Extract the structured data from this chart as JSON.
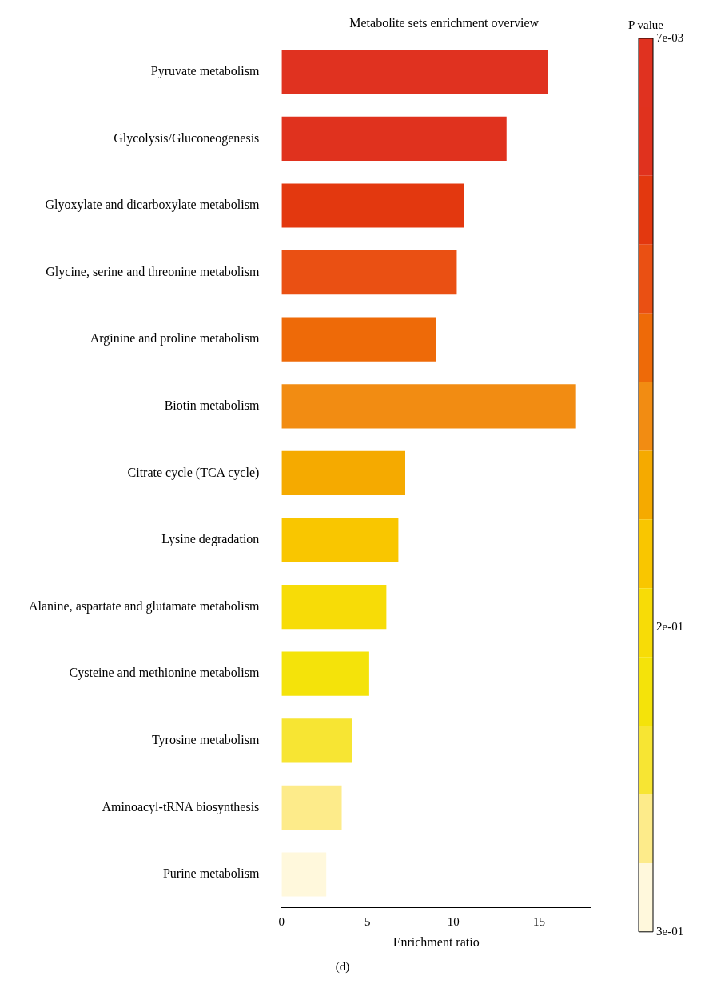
{
  "chart_data": {
    "type": "bar",
    "orientation": "horizontal",
    "title": "Metabolite sets enrichment overview",
    "xlabel": "Enrichment ratio",
    "clabel": "P value",
    "categories": [
      "Pyruvate metabolism",
      "Glycolysis/Gluconeogenesis",
      "Glyoxylate and dicarboxylate metabolism",
      "Glycine, serine and threonine metabolism",
      "Arginine and proline metabolism",
      "Biotin metabolism",
      "Citrate cycle (TCA cycle)",
      "Lysine degradation",
      "Alanine, aspartate and glutamate metabolism",
      "Cysteine and methionine metabolism",
      "Tyrosine metabolism",
      "Aminoacyl-tRNA biosynthesis",
      "Purine metabolism"
    ],
    "values": [
      15.5,
      13.1,
      10.6,
      10.2,
      9.0,
      17.1,
      7.2,
      6.8,
      6.1,
      5.1,
      4.1,
      3.5,
      2.6
    ],
    "colors": [
      "#e03220",
      "#e0321e",
      "#e3380f",
      "#ea5013",
      "#ee6a08",
      "#f28c12",
      "#f5aa00",
      "#f9c600",
      "#f7dc07",
      "#f4e30a",
      "#f7e533",
      "#fdeb8a",
      "#fff8dc"
    ],
    "xlim": [
      0,
      18
    ],
    "xticks": [
      0,
      5,
      10,
      15
    ],
    "clim": [
      0.007,
      0.3
    ],
    "cticks": [
      {
        "value": 0.007,
        "label": "7e-03"
      },
      {
        "value": 0.2,
        "label": "2e-01"
      },
      {
        "value": 0.3,
        "label": "3e-01"
      }
    ],
    "grid": false,
    "legend": false,
    "annotations": [
      "(d)"
    ]
  }
}
